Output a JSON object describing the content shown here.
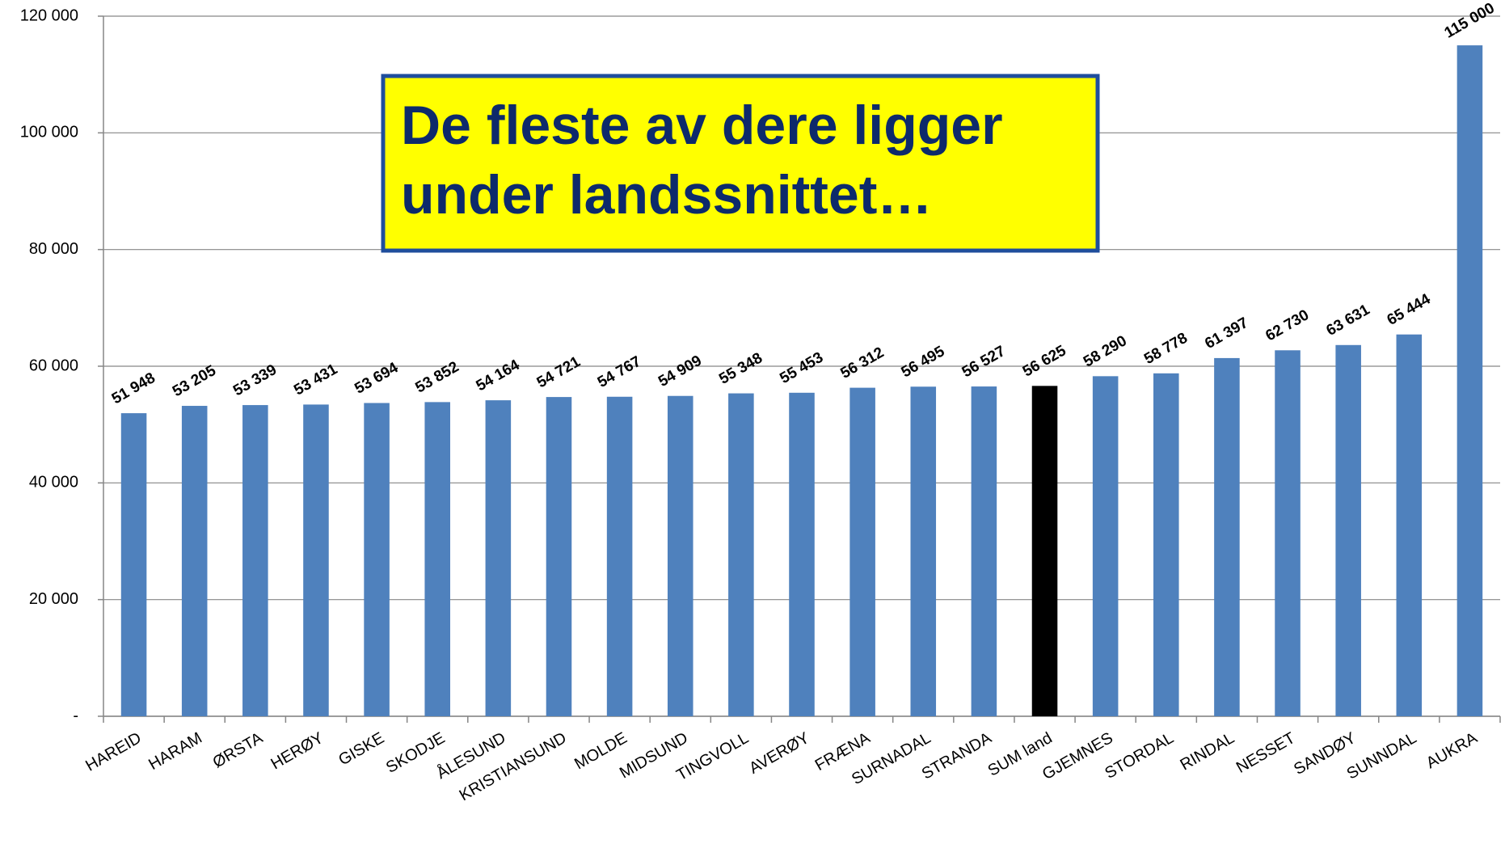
{
  "chart_data": {
    "type": "bar",
    "annotation": [
      "De fleste av dere ligger",
      "under landssnittet…"
    ],
    "categories": [
      "HAREID",
      "HARAM",
      "ØRSTA",
      "HERØY",
      "GISKE",
      "SKODJE",
      "ÅLESUND",
      "KRISTIANSUND",
      "MOLDE",
      "MIDSUND",
      "TINGVOLL",
      "AVERØY",
      "FRÆNA",
      "SURNADAL",
      "STRANDA",
      "SUM land",
      "GJEMNES",
      "STORDAL",
      "RINDAL",
      "NESSET",
      "SANDØY",
      "SUNNDAL",
      "AUKRA"
    ],
    "values": [
      51948,
      53205,
      53339,
      53431,
      53694,
      53852,
      54164,
      54721,
      54767,
      54909,
      55348,
      55453,
      56312,
      56495,
      56527,
      56625,
      58290,
      58778,
      61397,
      62730,
      63631,
      65444,
      115000
    ],
    "value_labels": [
      "51 948",
      "53 205",
      "53 339",
      "53 431",
      "53 694",
      "53 852",
      "54 164",
      "54 721",
      "54 767",
      "54 909",
      "55 348",
      "55 453",
      "56 312",
      "56 495",
      "56 527",
      "56 625",
      "58 290",
      "58 778",
      "61 397",
      "62 730",
      "63 631",
      "65 444",
      "115 000"
    ],
    "colors": [
      "#4f81bd",
      "#4f81bd",
      "#4f81bd",
      "#4f81bd",
      "#4f81bd",
      "#4f81bd",
      "#4f81bd",
      "#4f81bd",
      "#4f81bd",
      "#4f81bd",
      "#4f81bd",
      "#4f81bd",
      "#4f81bd",
      "#4f81bd",
      "#4f81bd",
      "#000000",
      "#4f81bd",
      "#4f81bd",
      "#4f81bd",
      "#4f81bd",
      "#4f81bd",
      "#4f81bd",
      "#4f81bd"
    ],
    "ylim": [
      0,
      120000
    ],
    "yticks": [
      {
        "value": 0,
        "label": "-"
      },
      {
        "value": 20000,
        "label": "20 000"
      },
      {
        "value": 40000,
        "label": "40 000"
      },
      {
        "value": 60000,
        "label": "60 000"
      },
      {
        "value": 80000,
        "label": "80 000"
      },
      {
        "value": 100000,
        "label": "100 000"
      },
      {
        "value": 120000,
        "label": "120 000"
      }
    ],
    "grid": true
  }
}
